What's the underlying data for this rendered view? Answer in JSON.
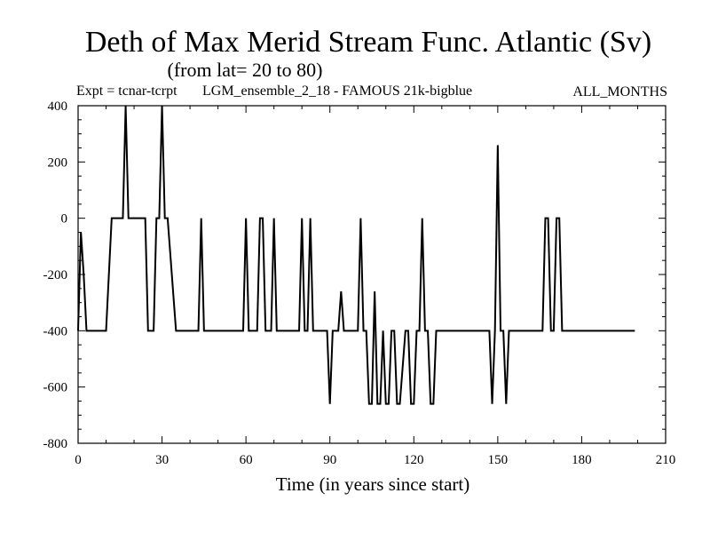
{
  "chart_data": {
    "type": "line",
    "title": "Deth of Max Merid Stream Func. Atlantic (Sv)",
    "subtitle": "(from lat= 20 to 80)",
    "experiment": "Expt = tcnar-tcrpt",
    "run_label": "LGM_ensemble_2_18 - FAMOUS 21k-bigblue",
    "period": "ALL_MONTHS",
    "xlabel": "Time (in years since start)",
    "ylabel": "",
    "xlim": [
      0,
      210
    ],
    "ylim": [
      -800,
      400
    ],
    "x_ticks": [
      0,
      30,
      60,
      90,
      120,
      150,
      180,
      210
    ],
    "y_ticks": [
      400,
      200,
      0,
      -200,
      -400,
      -600,
      -800
    ],
    "grid": false,
    "series": [
      {
        "color": "#000000",
        "x": [
          0,
          1,
          2,
          3,
          10,
          12,
          16,
          17,
          18,
          23,
          24,
          25,
          27,
          28,
          29,
          30,
          31,
          32,
          35,
          36,
          43,
          44,
          45,
          59,
          60,
          61,
          64,
          65,
          66,
          67,
          69,
          70,
          71,
          72,
          73,
          79,
          80,
          81,
          82,
          83,
          84,
          85,
          86,
          89,
          90,
          91,
          92,
          93,
          94,
          95,
          96,
          100,
          101,
          102,
          103,
          104,
          105,
          106,
          107,
          108,
          109,
          110,
          111,
          112,
          113,
          114,
          115,
          117,
          118,
          119,
          120,
          121,
          122,
          123,
          124,
          125,
          126,
          127,
          128,
          129,
          130,
          131,
          132,
          133,
          134,
          147,
          148,
          149,
          150,
          151,
          152,
          153,
          154,
          155,
          156,
          166,
          167,
          168,
          169,
          170,
          171,
          172,
          173,
          174,
          175,
          176,
          199
        ],
        "y": [
          -400,
          -50,
          -200,
          -400,
          -400,
          0,
          0,
          400,
          0,
          0,
          0,
          -400,
          -400,
          0,
          0,
          400,
          0,
          0,
          -400,
          -400,
          -400,
          0,
          -400,
          -400,
          0,
          -400,
          -400,
          0,
          0,
          -400,
          -400,
          0,
          -400,
          -400,
          -400,
          -400,
          0,
          -400,
          -400,
          0,
          -400,
          -400,
          -400,
          -400,
          -660,
          -400,
          -400,
          -400,
          -260,
          -400,
          -400,
          -400,
          0,
          -400,
          -400,
          -660,
          -660,
          -260,
          -660,
          -660,
          -400,
          -660,
          -660,
          -400,
          -400,
          -660,
          -660,
          -400,
          -400,
          -660,
          -660,
          -400,
          -400,
          0,
          -400,
          -400,
          -660,
          -660,
          -400,
          -400,
          -400,
          -400,
          -400,
          -400,
          -400,
          -400,
          -660,
          -400,
          260,
          -400,
          -400,
          -660,
          -400,
          -400,
          -400,
          -400,
          0,
          0,
          -400,
          -400,
          0,
          0,
          -400,
          -400,
          -400,
          -400,
          -400
        ]
      }
    ]
  }
}
